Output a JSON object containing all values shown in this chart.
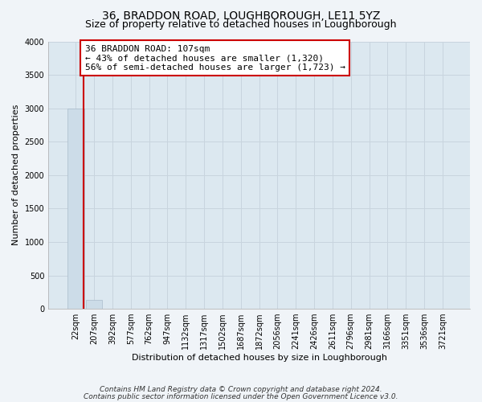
{
  "title": "36, BRADDON ROAD, LOUGHBOROUGH, LE11 5YZ",
  "subtitle": "Size of property relative to detached houses in Loughborough",
  "xlabel": "Distribution of detached houses by size in Loughborough",
  "ylabel": "Number of detached properties",
  "footnote1": "Contains HM Land Registry data © Crown copyright and database right 2024.",
  "footnote2": "Contains public sector information licensed under the Open Government Licence v3.0.",
  "bar_labels": [
    "22sqm",
    "207sqm",
    "392sqm",
    "577sqm",
    "762sqm",
    "947sqm",
    "1132sqm",
    "1317sqm",
    "1502sqm",
    "1687sqm",
    "1872sqm",
    "2056sqm",
    "2241sqm",
    "2426sqm",
    "2611sqm",
    "2796sqm",
    "2981sqm",
    "3166sqm",
    "3351sqm",
    "3536sqm",
    "3721sqm"
  ],
  "bar_heights": [
    3000,
    130,
    0,
    0,
    0,
    0,
    0,
    0,
    0,
    0,
    0,
    0,
    0,
    0,
    0,
    0,
    0,
    0,
    0,
    0,
    0
  ],
  "bar_color": "#ccdce8",
  "bar_edge_color": "#aabccc",
  "ylim": [
    0,
    4000
  ],
  "yticks": [
    0,
    500,
    1000,
    1500,
    2000,
    2500,
    3000,
    3500,
    4000
  ],
  "red_line_x": 0.425,
  "annotation_text_line1": "36 BRADDON ROAD: 107sqm",
  "annotation_text_line2": "← 43% of detached houses are smaller (1,320)",
  "annotation_text_line3": "56% of semi-detached houses are larger (1,723) →",
  "annotation_box_facecolor": "#ffffff",
  "annotation_box_edgecolor": "#cc0000",
  "grid_color": "#c8d4de",
  "plot_bg_color": "#dce8f0",
  "fig_bg_color": "#f0f4f8",
  "title_fontsize": 10,
  "subtitle_fontsize": 9,
  "axis_label_fontsize": 8,
  "tick_fontsize": 7,
  "annotation_fontsize": 8,
  "footnote_fontsize": 6.5
}
